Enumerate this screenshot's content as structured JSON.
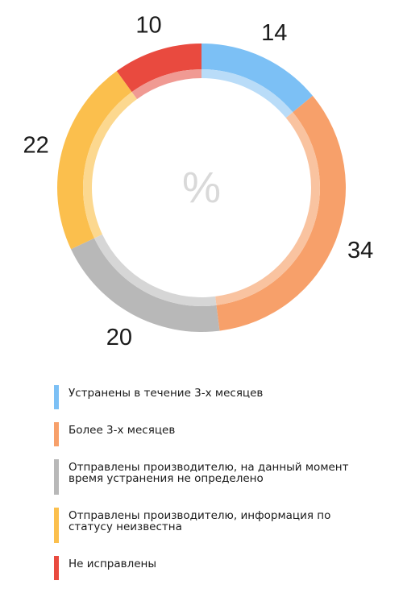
{
  "chart_data": {
    "type": "pie",
    "center_label": "%",
    "series": [
      {
        "name": "Устранены в течение 3-х месяцев",
        "value": 14,
        "color": "#7cc0f5",
        "light": "#b9dcf8"
      },
      {
        "name": "Более 3-х месяцев",
        "value": 34,
        "color": "#f7a06a",
        "light": "#f9c3a0"
      },
      {
        "name": "Отправлены производителю, на данный момент время устранения не определено",
        "value": 20,
        "color": "#b8b8b8",
        "light": "#d6d6d6"
      },
      {
        "name": "Отправлены производителю, информация по статусу неизвестна",
        "value": 22,
        "color": "#fbbf4d",
        "light": "#fcd88f"
      },
      {
        "name": "Не исправлены",
        "value": 10,
        "color": "#e94a3f",
        "light": "#f09a93"
      }
    ],
    "legend_position": "bottom"
  }
}
